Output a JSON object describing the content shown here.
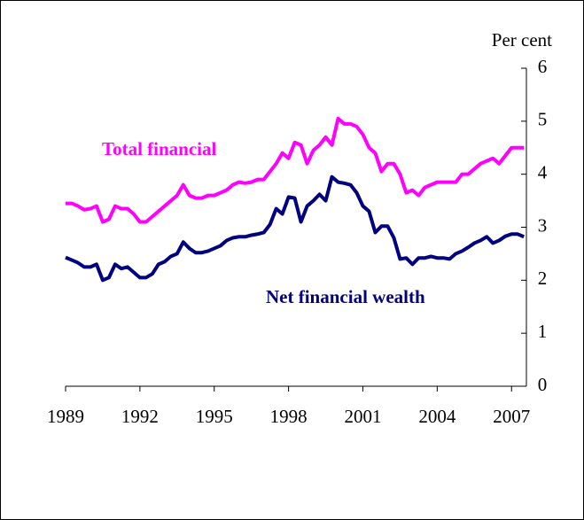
{
  "chart_data": {
    "type": "line",
    "y_label": "Per cent",
    "annotations": [
      "Total financial",
      "Net financial wealth"
    ],
    "x": [
      1989,
      1989.25,
      1989.5,
      1989.75,
      1990,
      1990.25,
      1990.5,
      1990.75,
      1991,
      1991.25,
      1991.5,
      1991.75,
      1992,
      1992.25,
      1992.5,
      1992.75,
      1993,
      1993.25,
      1993.5,
      1993.75,
      1994,
      1994.25,
      1994.5,
      1994.75,
      1995,
      1995.25,
      1995.5,
      1995.75,
      1996,
      1996.25,
      1996.5,
      1996.75,
      1997,
      1997.25,
      1997.5,
      1997.75,
      1998,
      1998.25,
      1998.5,
      1998.75,
      1999,
      1999.25,
      1999.5,
      1999.75,
      2000,
      2000.25,
      2000.5,
      2000.75,
      2001,
      2001.25,
      2001.5,
      2001.75,
      2002,
      2002.25,
      2002.5,
      2002.75,
      2003,
      2003.25,
      2003.5,
      2003.75,
      2004,
      2004.25,
      2004.5,
      2004.75,
      2005,
      2005.25,
      2005.5,
      2005.75,
      2006,
      2006.25,
      2006.5,
      2006.75,
      2007,
      2007.25,
      2007.5
    ],
    "series": [
      {
        "name": "Total financial",
        "color": "#ff00ff",
        "values": [
          3.45,
          3.45,
          3.4,
          3.33,
          3.35,
          3.4,
          3.1,
          3.15,
          3.4,
          3.35,
          3.35,
          3.25,
          3.1,
          3.1,
          3.2,
          3.3,
          3.4,
          3.5,
          3.6,
          3.8,
          3.6,
          3.55,
          3.55,
          3.6,
          3.6,
          3.65,
          3.7,
          3.8,
          3.85,
          3.83,
          3.85,
          3.9,
          3.9,
          4.05,
          4.2,
          4.4,
          4.3,
          4.6,
          4.55,
          4.2,
          4.45,
          4.55,
          4.7,
          4.55,
          5.05,
          4.95,
          4.95,
          4.9,
          4.75,
          4.5,
          4.4,
          4.05,
          4.2,
          4.2,
          4.0,
          3.65,
          3.7,
          3.6,
          3.75,
          3.8,
          3.85,
          3.85,
          3.85,
          3.85,
          4.0,
          4.0,
          4.1,
          4.2,
          4.25,
          4.3,
          4.2,
          4.35,
          4.5,
          4.5,
          4.5
        ]
      },
      {
        "name": "Net financial wealth",
        "color": "#000080",
        "values": [
          2.43,
          2.38,
          2.33,
          2.25,
          2.25,
          2.3,
          2.0,
          2.05,
          2.3,
          2.22,
          2.25,
          2.15,
          2.05,
          2.05,
          2.12,
          2.3,
          2.35,
          2.45,
          2.5,
          2.72,
          2.6,
          2.52,
          2.52,
          2.55,
          2.6,
          2.65,
          2.75,
          2.8,
          2.82,
          2.82,
          2.85,
          2.87,
          2.9,
          3.05,
          3.35,
          3.25,
          3.57,
          3.55,
          3.1,
          3.4,
          3.5,
          3.62,
          3.5,
          3.95,
          3.85,
          3.83,
          3.8,
          3.65,
          3.4,
          3.3,
          2.9,
          3.02,
          3.02,
          2.8,
          2.4,
          2.42,
          2.3,
          2.42,
          2.42,
          2.45,
          2.42,
          2.42,
          2.4,
          2.5,
          2.55,
          2.62,
          2.7,
          2.75,
          2.82,
          2.7,
          2.75,
          2.83,
          2.87,
          2.87,
          2.82
        ]
      }
    ],
    "xlim": [
      1989,
      2007.6
    ],
    "xticks": [
      1989,
      1992,
      1995,
      1998,
      2001,
      2004,
      2007
    ],
    "ylim": [
      0,
      6
    ],
    "yticks": [
      0,
      1,
      2,
      3,
      4,
      5,
      6
    ],
    "y_axis_side": "right"
  }
}
